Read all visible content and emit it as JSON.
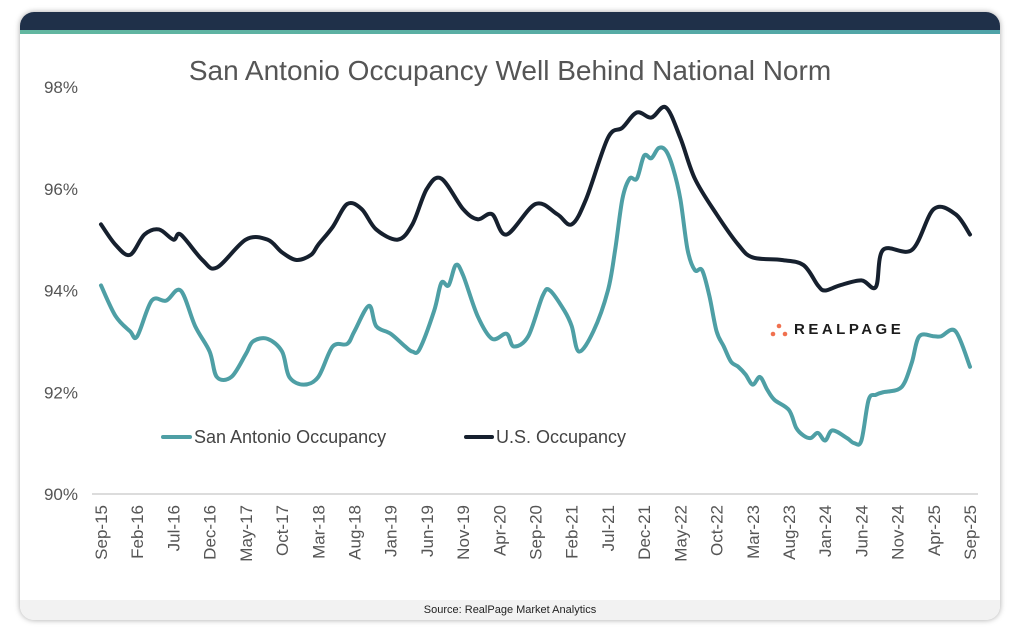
{
  "chart_data": {
    "type": "line",
    "title": "San Antonio Occupancy Well Behind National Norm",
    "xlabel": "",
    "ylabel": "",
    "ylim": [
      90,
      98
    ],
    "yticks": [
      "90%",
      "92%",
      "94%",
      "96%",
      "98%"
    ],
    "ytick_values": [
      90,
      92,
      94,
      96,
      98
    ],
    "xticks": [
      "Sep-15",
      "Feb-16",
      "Jul-16",
      "Dec-16",
      "May-17",
      "Oct-17",
      "Mar-18",
      "Aug-18",
      "Jan-19",
      "Jun-19",
      "Nov-19",
      "Apr-20",
      "Sep-20",
      "Feb-21",
      "Jul-21",
      "Dec-21",
      "May-22",
      "Oct-22",
      "Mar-23",
      "Aug-23",
      "Jan-24",
      "Jun-24",
      "Nov-24",
      "Apr-25",
      "Sep-25"
    ],
    "xrange": [
      "Sep-15",
      "Sep-25"
    ],
    "grid": false,
    "legend_position": "center-left",
    "series": [
      {
        "name": "San Antonio Occupancy",
        "color": "#4e9fa5",
        "points": [
          [
            "Sep-15",
            94.1
          ],
          [
            "Nov-15",
            93.5
          ],
          [
            "Jan-16",
            93.2
          ],
          [
            "Feb-16",
            93.1
          ],
          [
            "Apr-16",
            93.8
          ],
          [
            "Jun-16",
            93.8
          ],
          [
            "Aug-16",
            94.0
          ],
          [
            "Oct-16",
            93.3
          ],
          [
            "Dec-16",
            92.8
          ],
          [
            "Jan-17",
            92.3
          ],
          [
            "Mar-17",
            92.3
          ],
          [
            "May-17",
            92.75
          ],
          [
            "Jun-17",
            93.0
          ],
          [
            "Aug-17",
            93.05
          ],
          [
            "Oct-17",
            92.8
          ],
          [
            "Nov-17",
            92.3
          ],
          [
            "Jan-18",
            92.15
          ],
          [
            "Mar-18",
            92.3
          ],
          [
            "May-18",
            92.9
          ],
          [
            "Jul-18",
            92.95
          ],
          [
            "Aug-18",
            93.2
          ],
          [
            "Oct-18",
            93.7
          ],
          [
            "Nov-18",
            93.3
          ],
          [
            "Jan-19",
            93.15
          ],
          [
            "Mar-19",
            92.9
          ],
          [
            "Apr-19",
            92.8
          ],
          [
            "May-19",
            92.85
          ],
          [
            "Jul-19",
            93.6
          ],
          [
            "Aug-19",
            94.15
          ],
          [
            "Sep-19",
            94.1
          ],
          [
            "Oct-19",
            94.5
          ],
          [
            "Nov-19",
            94.3
          ],
          [
            "Jan-20",
            93.5
          ],
          [
            "Mar-20",
            93.05
          ],
          [
            "May-20",
            93.15
          ],
          [
            "Jun-20",
            92.9
          ],
          [
            "Aug-20",
            93.1
          ],
          [
            "Oct-20",
            93.9
          ],
          [
            "Nov-20",
            94.0
          ],
          [
            "Jan-21",
            93.6
          ],
          [
            "Feb-21",
            93.3
          ],
          [
            "Mar-21",
            92.8
          ],
          [
            "May-21",
            93.2
          ],
          [
            "Jul-21",
            94.0
          ],
          [
            "Aug-21",
            94.8
          ],
          [
            "Sep-21",
            95.8
          ],
          [
            "Oct-21",
            96.2
          ],
          [
            "Nov-21",
            96.2
          ],
          [
            "Dec-21",
            96.65
          ],
          [
            "Jan-22",
            96.6
          ],
          [
            "Feb-22",
            96.8
          ],
          [
            "Mar-22",
            96.75
          ],
          [
            "Apr-22",
            96.4
          ],
          [
            "May-22",
            95.8
          ],
          [
            "Jun-22",
            94.8
          ],
          [
            "Jul-22",
            94.4
          ],
          [
            "Aug-22",
            94.4
          ],
          [
            "Sep-22",
            93.9
          ],
          [
            "Oct-22",
            93.2
          ],
          [
            "Nov-22",
            92.9
          ],
          [
            "Dec-22",
            92.6
          ],
          [
            "Jan-23",
            92.5
          ],
          [
            "Feb-23",
            92.35
          ],
          [
            "Mar-23",
            92.15
          ],
          [
            "Apr-23",
            92.3
          ],
          [
            "May-23",
            92.05
          ],
          [
            "Jun-23",
            91.85
          ],
          [
            "Aug-23",
            91.65
          ],
          [
            "Sep-23",
            91.3
          ],
          [
            "Oct-23",
            91.15
          ],
          [
            "Nov-23",
            91.1
          ],
          [
            "Dec-23",
            91.2
          ],
          [
            "Jan-24",
            91.05
          ],
          [
            "Feb-24",
            91.25
          ],
          [
            "Apr-24",
            91.1
          ],
          [
            "May-24",
            91.0
          ],
          [
            "Jun-24",
            91.05
          ],
          [
            "Jul-24",
            91.85
          ],
          [
            "Aug-24",
            91.95
          ],
          [
            "Sep-24",
            92.0
          ],
          [
            "Nov-24",
            92.05
          ],
          [
            "Dec-24",
            92.2
          ],
          [
            "Jan-25",
            92.6
          ],
          [
            "Feb-25",
            93.1
          ],
          [
            "Apr-25",
            93.1
          ],
          [
            "May-25",
            93.1
          ],
          [
            "Jul-25",
            93.2
          ],
          [
            "Sep-25",
            92.5
          ]
        ]
      },
      {
        "name": "U.S. Occupancy",
        "color": "#16202e",
        "points": [
          [
            "Sep-15",
            95.3
          ],
          [
            "Nov-15",
            94.9
          ],
          [
            "Jan-16",
            94.7
          ],
          [
            "Mar-16",
            95.1
          ],
          [
            "May-16",
            95.2
          ],
          [
            "Jul-16",
            95.0
          ],
          [
            "Aug-16",
            95.1
          ],
          [
            "Nov-16",
            94.6
          ],
          [
            "Jan-17",
            94.45
          ],
          [
            "May-17",
            95.0
          ],
          [
            "Aug-17",
            95.0
          ],
          [
            "Oct-17",
            94.75
          ],
          [
            "Dec-17",
            94.6
          ],
          [
            "Feb-18",
            94.7
          ],
          [
            "Mar-18",
            94.9
          ],
          [
            "May-18",
            95.25
          ],
          [
            "Jul-18",
            95.7
          ],
          [
            "Sep-18",
            95.6
          ],
          [
            "Nov-18",
            95.2
          ],
          [
            "Feb-19",
            95.0
          ],
          [
            "Apr-19",
            95.3
          ],
          [
            "Jun-19",
            96.0
          ],
          [
            "Aug-19",
            96.2
          ],
          [
            "Nov-19",
            95.6
          ],
          [
            "Jan-20",
            95.4
          ],
          [
            "Mar-20",
            95.5
          ],
          [
            "May-20",
            95.1
          ],
          [
            "Sep-20",
            95.7
          ],
          [
            "Dec-20",
            95.5
          ],
          [
            "Feb-21",
            95.3
          ],
          [
            "Apr-21",
            95.8
          ],
          [
            "Jul-21",
            97.0
          ],
          [
            "Sep-21",
            97.2
          ],
          [
            "Nov-21",
            97.5
          ],
          [
            "Jan-22",
            97.4
          ],
          [
            "Mar-22",
            97.6
          ],
          [
            "May-22",
            97.0
          ],
          [
            "Jul-22",
            96.2
          ],
          [
            "Oct-22",
            95.5
          ],
          [
            "Jan-23",
            94.9
          ],
          [
            "Mar-23",
            94.65
          ],
          [
            "Jul-23",
            94.6
          ],
          [
            "Oct-23",
            94.5
          ],
          [
            "Dec-23",
            94.1
          ],
          [
            "Jan-24",
            94.0
          ],
          [
            "Mar-24",
            94.1
          ],
          [
            "Jun-24",
            94.2
          ],
          [
            "Aug-24",
            94.07
          ],
          [
            "Sep-24",
            94.8
          ],
          [
            "Jan-25",
            94.8
          ],
          [
            "Apr-25",
            95.6
          ],
          [
            "Jul-25",
            95.5
          ],
          [
            "Sep-25",
            95.1
          ]
        ]
      }
    ]
  },
  "logo": {
    "text": "REALPAGE",
    "color": "#f0714f"
  },
  "footer": {
    "source": "Source: RealPage Market Analytics"
  },
  "colors": {
    "header": "#1f3049",
    "accent": "#5fb3a3"
  }
}
